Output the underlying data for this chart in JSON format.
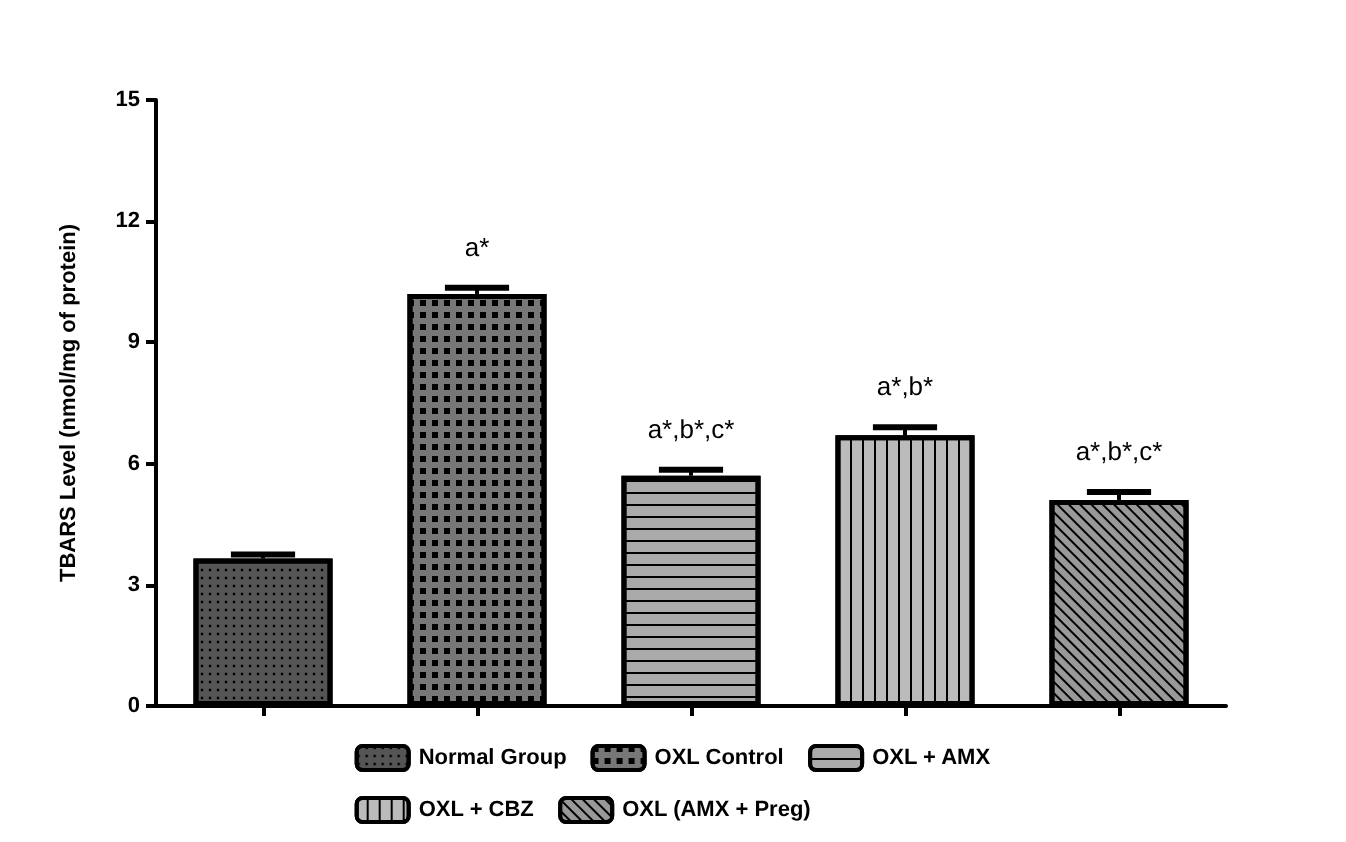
{
  "chart_data": {
    "type": "bar",
    "ylabel": "TBARS Level (nmol/mg of protein)",
    "categories": [
      null,
      null,
      null,
      null,
      null
    ],
    "series": [
      {
        "name": "Normal Group",
        "color": "#555555",
        "values": [
          3.65,
          null,
          null,
          null,
          null
        ],
        "errors": [
          0.1,
          null,
          null,
          null,
          null
        ]
      },
      {
        "name": "OXL Control",
        "color": "#777777",
        "values": [
          null,
          10.2,
          null,
          null,
          null
        ],
        "errors": [
          null,
          0.15,
          null,
          null,
          null
        ]
      },
      {
        "name": "OXL + AMX",
        "color": "#aaaaaa",
        "values": [
          null,
          null,
          5.7,
          null,
          null
        ],
        "errors": [
          null,
          null,
          0.15,
          null,
          null
        ]
      },
      {
        "name": "OXL + CBZ",
        "color": "#bbbbbb",
        "values": [
          null,
          null,
          null,
          6.7,
          null
        ],
        "errors": [
          null,
          null,
          null,
          0.2,
          null
        ]
      },
      {
        "name": "OXL (AMX + Preg)",
        "color": "#999999",
        "values": [
          null,
          null,
          null,
          null,
          5.1
        ],
        "errors": [
          null,
          null,
          null,
          null,
          0.2
        ]
      }
    ],
    "annotations": [
      {
        "text": "a*",
        "y": 10.35
      },
      {
        "text": "a*,b*,c*",
        "y": 5.85
      },
      {
        "text": "a*,b*",
        "y": 6.9
      },
      {
        "text": "a*,b*,c*",
        "y": 5.3
      }
    ],
    "ylim": [
      0,
      15
    ],
    "yticks": [
      0,
      3,
      6,
      9,
      12,
      15
    ],
    "grid": false,
    "legend": "bottom",
    "tick_labels": "y"
  }
}
